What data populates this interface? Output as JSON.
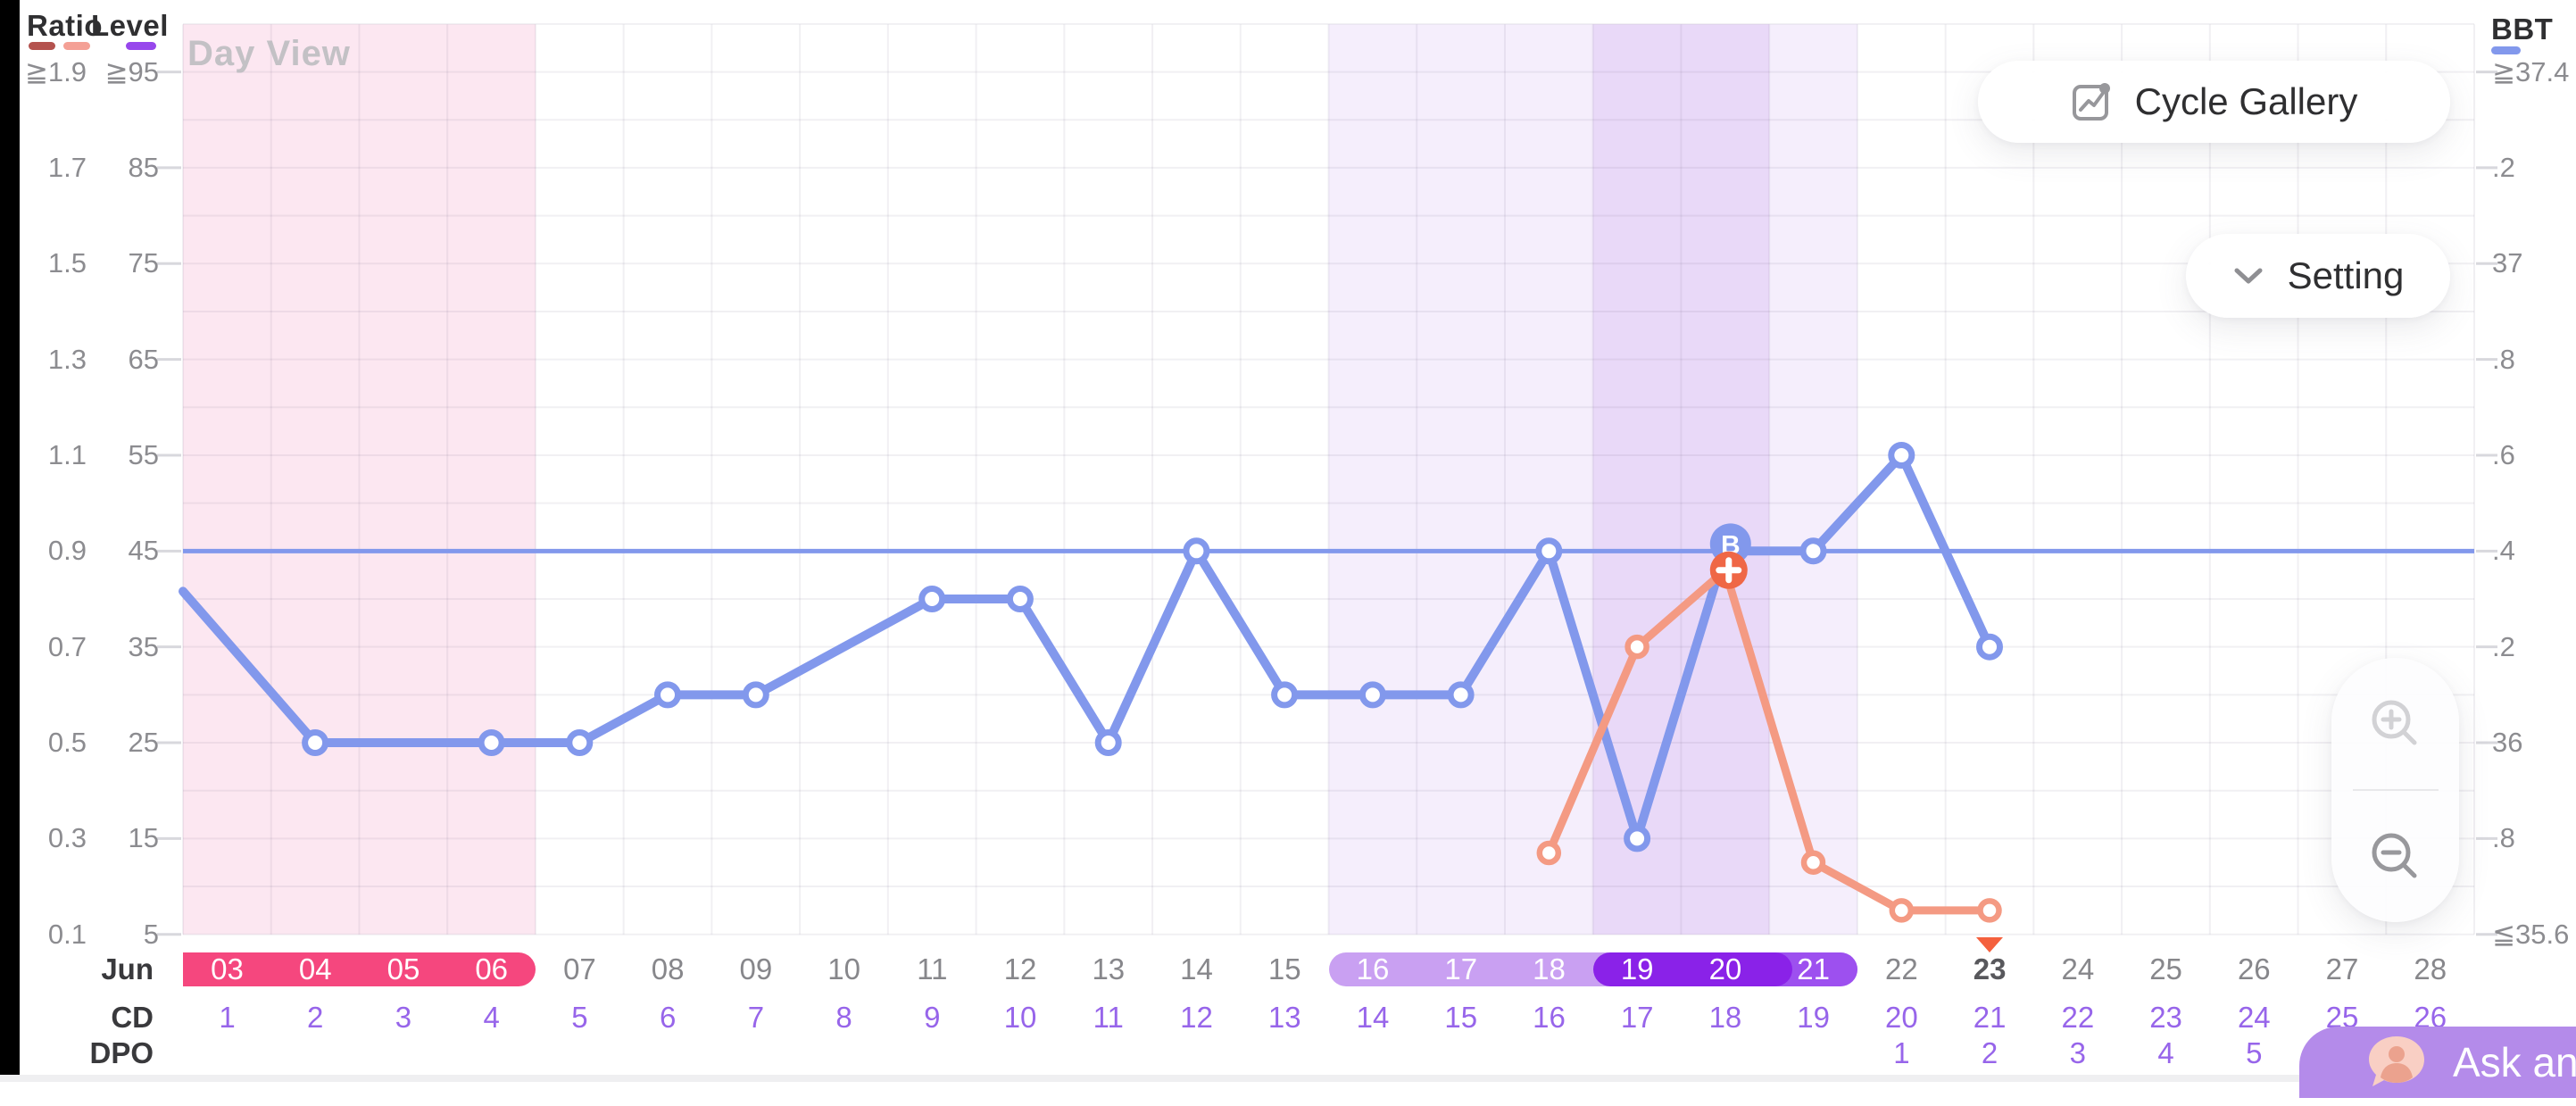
{
  "watermark": "Day View",
  "left_axis": {
    "ratio_label": "Ratio",
    "level_label": "Level",
    "ratio_ticks": [
      "≧1.9",
      "1.7",
      "1.5",
      "1.3",
      "1.1",
      "0.9",
      "0.7",
      "0.5",
      "0.3",
      "0.1"
    ],
    "level_ticks": [
      "≧95",
      "85",
      "75",
      "65",
      "55",
      "45",
      "35",
      "25",
      "15",
      "5"
    ]
  },
  "right_axis": {
    "bbt_label": "BBT",
    "bbt_ticks": [
      "≧37.4",
      ".2",
      "37",
      ".8",
      ".6",
      ".4",
      ".2",
      "36",
      ".8",
      "≦35.6"
    ]
  },
  "toolbar": {
    "cycle_gallery_label": "Cycle Gallery",
    "setting_label": "Setting"
  },
  "ask_button": {
    "label": "Ask an"
  },
  "rows": {
    "month_label": "Jun",
    "cd_label": "CD",
    "dpo_label": "DPO"
  },
  "icons": {
    "cycle_gallery": "line-chart-icon",
    "setting": "chevron-down-icon",
    "zoom_in": "magnifier-plus-icon",
    "zoom_out": "magnifier-minus-icon",
    "ask": "chat-person-icon",
    "today": "triangle-down-icon"
  },
  "colors": {
    "lh_line": "#8298ec",
    "bbt_line": "#f49a83",
    "bbt_badge": "#ef6746",
    "lh_badge": "#8298ec",
    "coverline": "#8298ec",
    "period_pill": "#f5477e",
    "period_band": "#fce7f1",
    "fertile_pill": "#c9a0f2",
    "fertile_pill_peak": "#8a22e8",
    "fertile_pill_end": "#9d50ef",
    "fertile_band": "#f5eefc",
    "peak_band": "#e9d9f8",
    "grid": "rgba(95,90,125,0.09)",
    "tick": "#d8d8dd",
    "cd_text": "#9765ea",
    "today_marker": "#f4603d",
    "ratio_swatch_dark": "#b4524e",
    "ratio_swatch_light": "#f4a095",
    "level_swatch": "#9747ec",
    "bbt_swatch": "#8298ec"
  },
  "chart_data": {
    "type": "line",
    "title_watermark": "Day View",
    "month": "Jun",
    "dates": [
      "03",
      "04",
      "05",
      "06",
      "07",
      "08",
      "09",
      "10",
      "11",
      "12",
      "13",
      "14",
      "15",
      "16",
      "17",
      "18",
      "19",
      "20",
      "21",
      "22",
      "23",
      "24",
      "25",
      "26",
      "27",
      "28"
    ],
    "cd": [
      "1",
      "2",
      "3",
      "4",
      "5",
      "6",
      "7",
      "8",
      "9",
      "10",
      "11",
      "12",
      "13",
      "14",
      "15",
      "16",
      "17",
      "18",
      "19",
      "20",
      "21",
      "22",
      "23",
      "24",
      "25",
      "26"
    ],
    "dpo": [
      "",
      "",
      "",
      "",
      "",
      "",
      "",
      "",
      "",
      "",
      "",
      "",
      "",
      "",
      "",
      "",
      "",
      "",
      "",
      "1",
      "2",
      "3",
      "4",
      "5",
      "",
      ""
    ],
    "today_date": "23",
    "axis_ranges": {
      "ratio": [
        0.1,
        1.9
      ],
      "level": [
        5,
        95
      ],
      "bbt": [
        35.6,
        37.4
      ]
    },
    "grid": "on",
    "coverline": {
      "level": 45,
      "ratio": 0.9,
      "bbt": 36.4
    },
    "bands": {
      "period_dates": [
        "03",
        "06"
      ],
      "fertile_dates": [
        "16",
        "21"
      ],
      "peak_dates": [
        "19",
        "20"
      ]
    },
    "series": [
      {
        "name": "lh-ratio-level",
        "axis": "level",
        "color_key": "lh_line",
        "left_edge_entry_level": 40.8,
        "points": [
          {
            "day": 4,
            "level": 25
          },
          {
            "day": 6,
            "level": 25
          },
          {
            "day": 7,
            "level": 25
          },
          {
            "day": 8,
            "level": 30
          },
          {
            "day": 9,
            "level": 30
          },
          {
            "day": 11,
            "level": 40
          },
          {
            "day": 12,
            "level": 40
          },
          {
            "day": 13,
            "level": 25
          },
          {
            "day": 14,
            "level": 45
          },
          {
            "day": 15,
            "level": 30
          },
          {
            "day": 16,
            "level": 30
          },
          {
            "day": 17,
            "level": 30
          },
          {
            "day": 18,
            "level": 45
          },
          {
            "day": 19,
            "level": 15
          },
          {
            "day": 20,
            "level": 45,
            "badge": "B"
          },
          {
            "day": 21,
            "level": 45
          },
          {
            "day": 22,
            "level": 55
          },
          {
            "day": 23,
            "level": 35
          }
        ]
      },
      {
        "name": "bbt",
        "axis": "bbt",
        "color_key": "bbt_line",
        "points": [
          {
            "day": 18,
            "bbt": 35.77
          },
          {
            "day": 19,
            "bbt": 36.2
          },
          {
            "day": 20,
            "bbt": 36.36,
            "badge": "+"
          },
          {
            "day": 21,
            "bbt": 35.75
          },
          {
            "day": 22,
            "bbt": 35.65
          },
          {
            "day": 23,
            "bbt": 35.65
          }
        ]
      }
    ]
  }
}
